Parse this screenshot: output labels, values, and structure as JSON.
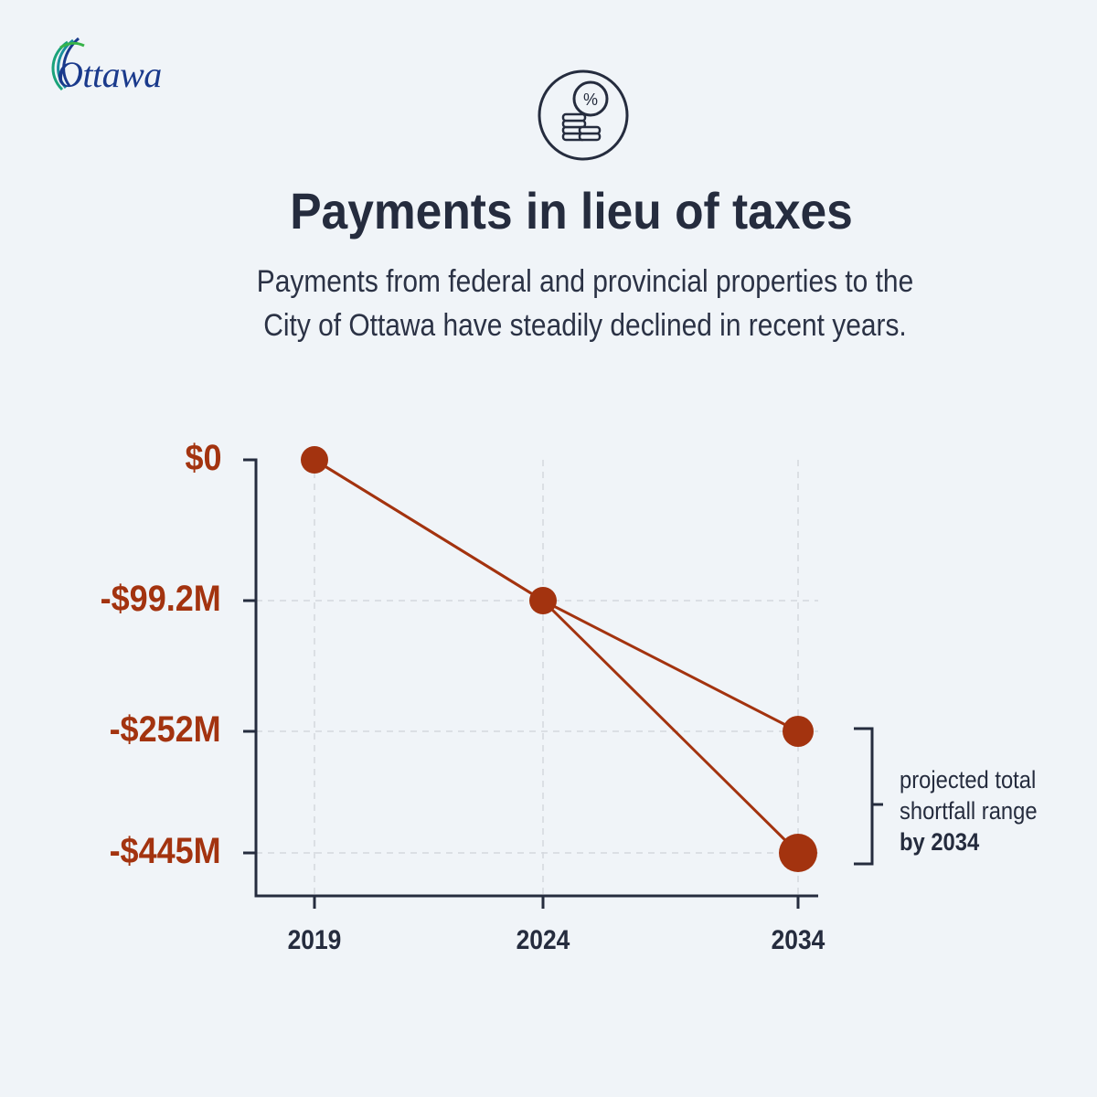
{
  "header": {
    "logo_text": "Ottawa",
    "icon": "percent-coins-icon",
    "title": "Payments in lieu of taxes",
    "subtitle_line1": "Payments from federal and provincial properties to the",
    "subtitle_line2": "City of Ottawa have steadily declined in recent years."
  },
  "colors": {
    "accent": "#a3330f",
    "text": "#252c3e",
    "background": "#f0f4f8"
  },
  "chart_data": {
    "type": "line",
    "title": "Payments in lieu of taxes",
    "x": [
      "2019",
      "2024",
      "2034"
    ],
    "series": [
      {
        "values": [
          0,
          -99.2,
          -252
        ]
      },
      {
        "values": [
          0,
          -99.2,
          -445
        ]
      }
    ],
    "y_ticks": [
      {
        "value": 0,
        "label": "$0"
      },
      {
        "value": -99.2,
        "label": "-$99.2M"
      },
      {
        "value": -252,
        "label": "-$252M"
      },
      {
        "value": -445,
        "label": "-$445M"
      }
    ],
    "grid": true,
    "annotation": {
      "line1": "projected total",
      "line2": "shortfall range",
      "line3": "by 2034"
    }
  }
}
